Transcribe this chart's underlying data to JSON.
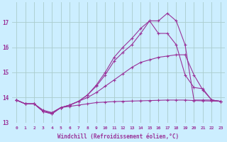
{
  "xlabel": "Windchill (Refroidissement éolien,°C)",
  "background_color": "#cceeff",
  "grid_color": "#aacccc",
  "line_color": "#993399",
  "xlim": [
    -0.5,
    23.5
  ],
  "ylim": [
    13.0,
    17.8
  ],
  "yticks": [
    13,
    14,
    15,
    16,
    17
  ],
  "xticks": [
    0,
    1,
    2,
    3,
    4,
    5,
    6,
    7,
    8,
    9,
    10,
    11,
    12,
    13,
    14,
    15,
    16,
    17,
    18,
    19,
    20,
    21,
    22,
    23
  ],
  "lines": [
    {
      "x": [
        0,
        1,
        2,
        3,
        4,
        5,
        6,
        7,
        8,
        9,
        10,
        11,
        12,
        13,
        14,
        15,
        16,
        17,
        18,
        19,
        20,
        21,
        22,
        23
      ],
      "y": [
        13.9,
        13.75,
        13.75,
        13.45,
        13.4,
        13.6,
        13.7,
        13.85,
        14.1,
        14.5,
        15.0,
        15.6,
        16.0,
        16.35,
        16.75,
        17.05,
        17.05,
        17.35,
        17.05,
        16.1,
        13.9,
        13.9,
        13.9,
        13.85
      ]
    },
    {
      "x": [
        0,
        1,
        2,
        3,
        4,
        5,
        6,
        7,
        8,
        9,
        10,
        11,
        12,
        13,
        14,
        15,
        16,
        17,
        18,
        19,
        20,
        21,
        22,
        23
      ],
      "y": [
        13.9,
        13.75,
        13.75,
        13.45,
        13.35,
        13.6,
        13.7,
        13.85,
        14.1,
        14.45,
        14.9,
        15.45,
        15.8,
        16.1,
        16.55,
        17.05,
        16.55,
        16.55,
        16.1,
        14.9,
        14.4,
        14.35,
        13.9,
        13.85
      ]
    },
    {
      "x": [
        0,
        1,
        2,
        3,
        4,
        5,
        6,
        7,
        8,
        9,
        10,
        11,
        12,
        13,
        14,
        15,
        16,
        17,
        18,
        19,
        20,
        21,
        22,
        23
      ],
      "y": [
        13.9,
        13.75,
        13.75,
        13.5,
        13.4,
        13.6,
        13.65,
        13.7,
        13.75,
        13.8,
        13.82,
        13.84,
        13.85,
        13.86,
        13.87,
        13.88,
        13.89,
        13.9,
        13.9,
        13.9,
        13.88,
        13.87,
        13.86,
        13.85
      ]
    },
    {
      "x": [
        0,
        1,
        2,
        3,
        4,
        5,
        6,
        7,
        8,
        9,
        10,
        11,
        12,
        13,
        14,
        15,
        16,
        17,
        18,
        19,
        20,
        21,
        22,
        23
      ],
      "y": [
        13.9,
        13.75,
        13.75,
        13.45,
        13.35,
        13.6,
        13.7,
        13.85,
        14.0,
        14.2,
        14.45,
        14.7,
        14.95,
        15.2,
        15.4,
        15.5,
        15.6,
        15.65,
        15.7,
        15.7,
        14.9,
        14.3,
        13.9,
        13.85
      ]
    }
  ]
}
